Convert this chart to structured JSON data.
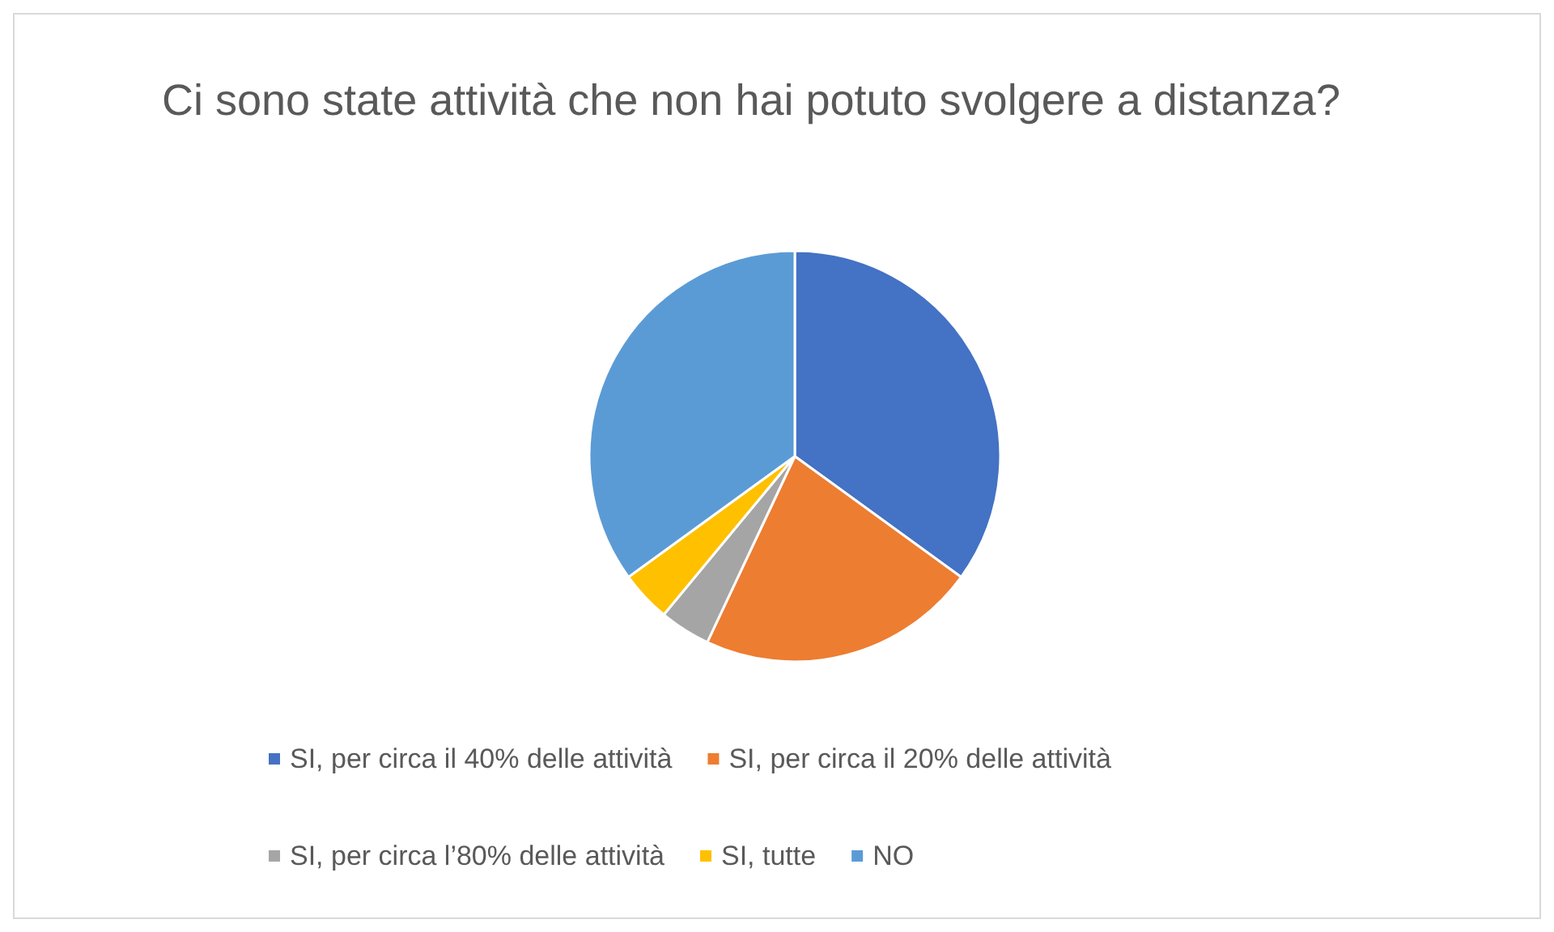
{
  "chart_data": {
    "type": "pie",
    "title": "Ci sono state attività che non hai potuto svolgere a distanza?",
    "categories": [
      "SI, per circa il 40% delle attività",
      "SI, per circa il 20% delle attività",
      "SI, per circa l’80% delle attività",
      "SI, tutte",
      "NO"
    ],
    "values": [
      35,
      22,
      4,
      4,
      35
    ],
    "colors": [
      "#4472c4",
      "#ed7d31",
      "#a5a5a5",
      "#ffc000",
      "#5b9bd5"
    ],
    "legend": "bottom"
  }
}
